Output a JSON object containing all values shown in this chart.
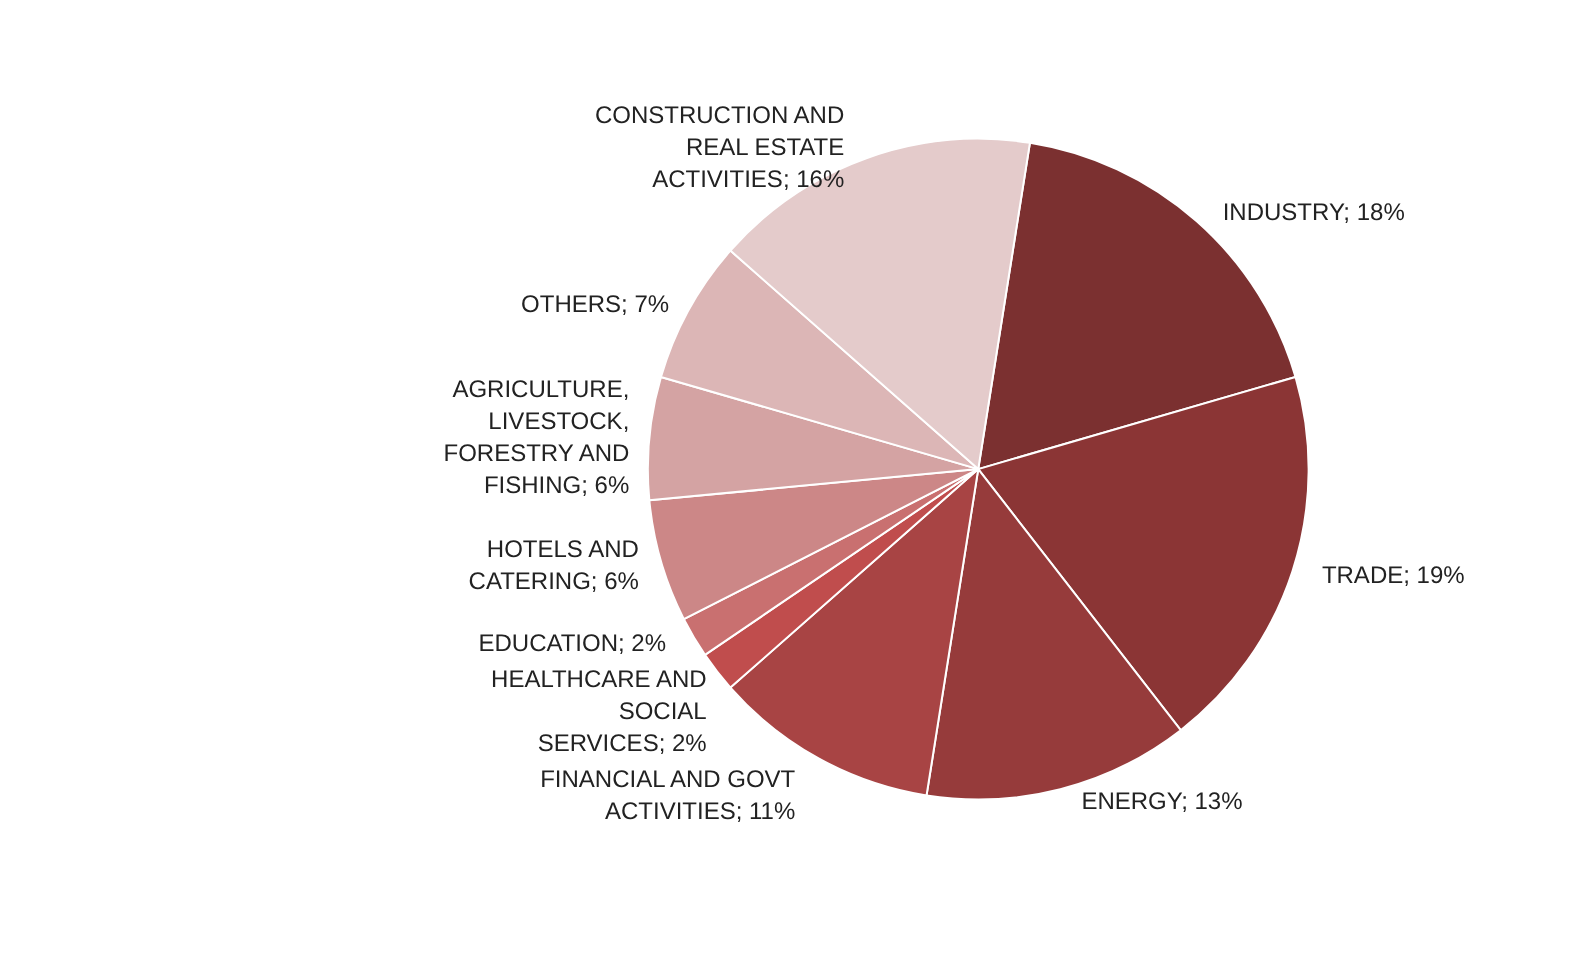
{
  "chart_data": {
    "type": "pie",
    "categories": [
      "INDUSTRY",
      "TRADE",
      "ENERGY",
      "FINANCIAL AND GOVT ACTIVITIES",
      "HEALTHCARE AND SOCIAL SERVICES",
      "EDUCATION",
      "HOTELS AND CATERING",
      "AGRICULTURE, LIVESTOCK, FORESTRY AND FISHING",
      "OTHERS",
      "CONSTRUCTION AND REAL ESTATE ACTIVITIES"
    ],
    "values": [
      18,
      19,
      13,
      11,
      2,
      2,
      6,
      6,
      7,
      16
    ],
    "colors": [
      "#7b3030",
      "#8b3535",
      "#963b3b",
      "#a84444",
      "#c04d4d",
      "#c97070",
      "#cc8787",
      "#d4a3a3",
      "#dcb6b6",
      "#e4cbcb"
    ],
    "value_labels": [
      "18%",
      "19%",
      "13%",
      "11%",
      "2%",
      "2%",
      "6%",
      "6%",
      "7%",
      "16%"
    ],
    "legend": false
  }
}
